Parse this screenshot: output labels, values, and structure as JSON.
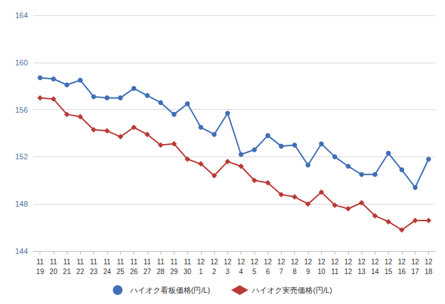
{
  "chart_data": {
    "type": "line",
    "categories": [
      "11\n19",
      "11\n20",
      "11\n21",
      "11\n22",
      "11\n23",
      "11\n24",
      "11\n25",
      "11\n26",
      "11\n27",
      "11\n28",
      "11\n29",
      "11\n30",
      "12\n1",
      "12\n2",
      "12\n3",
      "12\n4",
      "12\n5",
      "12\n6",
      "12\n7",
      "12\n8",
      "12\n9",
      "12\n10",
      "12\n11",
      "12\n12",
      "12\n13",
      "12\n14",
      "12\n15",
      "12\n16",
      "12\n17",
      "12\n18"
    ],
    "series": [
      {
        "name": "ハイオク看板価格(円/L)",
        "color": "#3f6fb6",
        "marker": "circle",
        "values": [
          158.7,
          158.6,
          158.1,
          158.5,
          157.1,
          157.0,
          157.0,
          157.8,
          157.2,
          156.6,
          155.6,
          156.5,
          154.5,
          153.9,
          155.7,
          152.2,
          152.6,
          153.8,
          152.9,
          153.0,
          151.3,
          153.1,
          152.0,
          151.2,
          150.5,
          150.5,
          152.3,
          150.9,
          149.4,
          151.8
        ]
      },
      {
        "name": "ハイオク実売価格(円/L)",
        "color": "#b93a36",
        "marker": "diamond",
        "values": [
          157.0,
          156.9,
          155.6,
          155.4,
          154.3,
          154.2,
          153.7,
          154.5,
          153.9,
          153.0,
          153.1,
          151.8,
          151.4,
          150.4,
          151.6,
          151.2,
          150.0,
          149.8,
          148.8,
          148.6,
          148.0,
          149.0,
          147.9,
          147.6,
          148.1,
          147.0,
          146.5,
          145.8,
          146.6,
          146.6
        ]
      }
    ],
    "ylim": [
      144,
      164
    ],
    "yticks": [
      144,
      148,
      152,
      156,
      160,
      164
    ],
    "grid": true,
    "legend": "bottom"
  }
}
